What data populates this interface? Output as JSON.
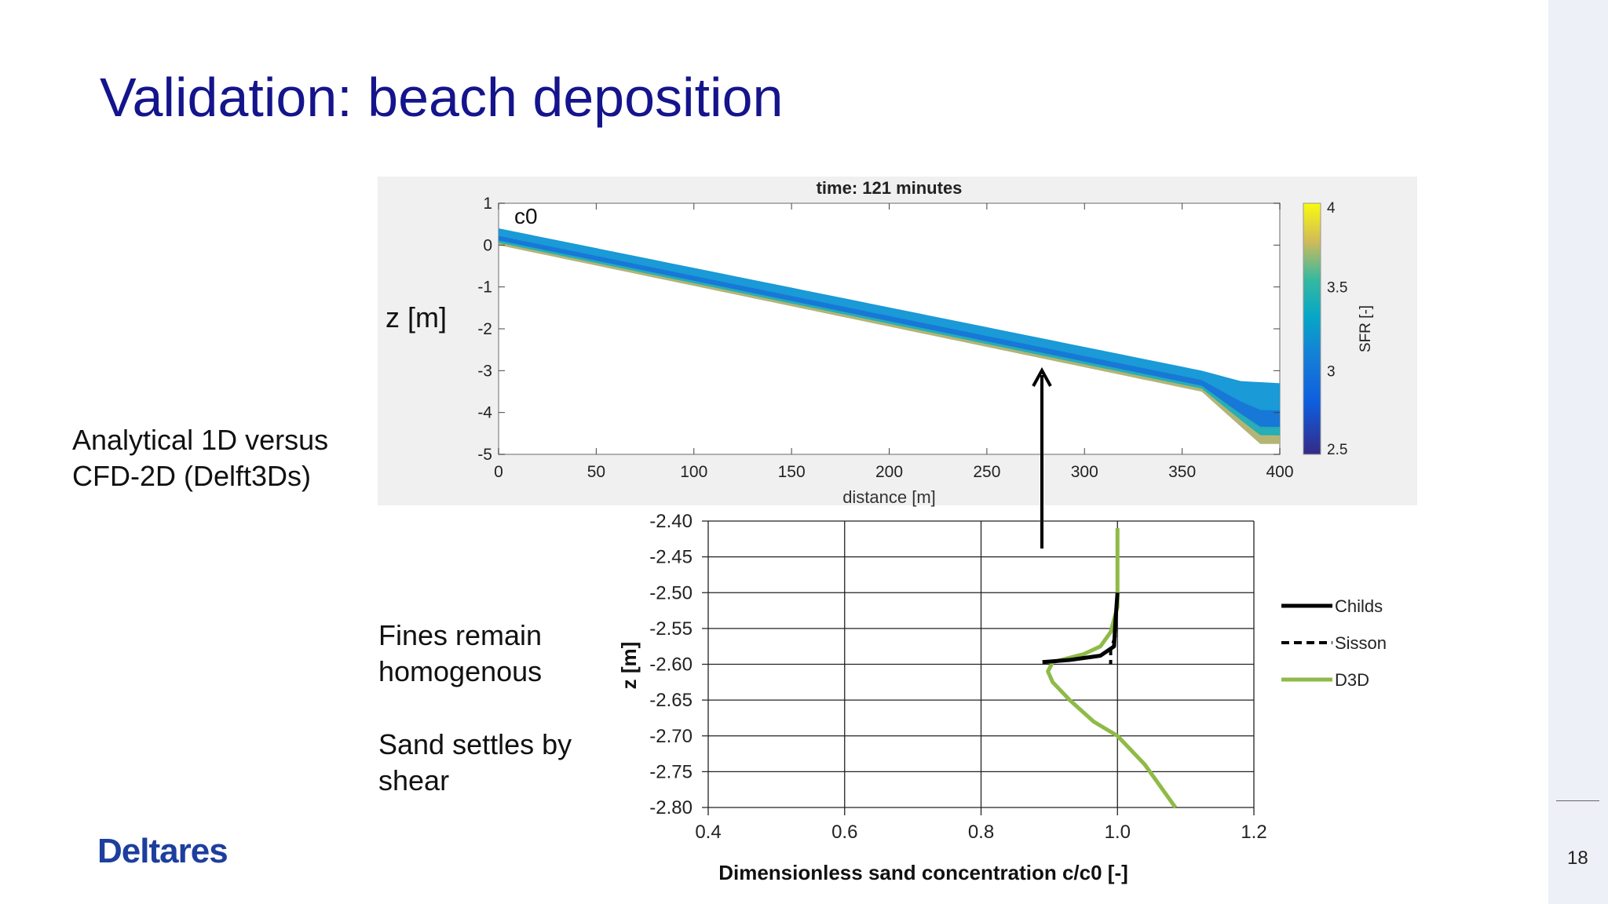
{
  "slide": {
    "title": "Validation: beach deposition",
    "page_number": "18",
    "logo": "Deltares",
    "text_left": [
      "Analytical 1D versus",
      "CFD-2D (Delft3Ds)"
    ],
    "text_fines": [
      "Fines remain",
      "homogenous"
    ],
    "text_sand": [
      "Sand settles by",
      "shear"
    ]
  },
  "colors": {
    "title": "#14148c",
    "logo": "#1d3e9e",
    "childs": "#000000",
    "sisson": "#000000",
    "d3d": "#8fba48"
  },
  "chart_data": [
    {
      "type": "heatmap",
      "title": "time: 121 minutes",
      "xlabel": "distance [m]",
      "ylabel": "z [m]",
      "annotation": "c0",
      "xlim": [
        0,
        400
      ],
      "ylim": [
        -5,
        1
      ],
      "xticks": [
        0,
        50,
        100,
        150,
        200,
        250,
        300,
        350,
        400
      ],
      "yticks": [
        1,
        0,
        -1,
        -2,
        -3,
        -4,
        -5
      ],
      "colorbar": {
        "label": "SFR [-]",
        "range": [
          2.5,
          4
        ],
        "ticks": [
          4,
          3.5,
          3,
          2.5
        ],
        "colormap": "parula"
      },
      "domain_top": [
        [
          0,
          0.4
        ],
        [
          360,
          -3.0
        ],
        [
          380,
          -3.25
        ],
        [
          400,
          -3.3
        ]
      ],
      "domain_bottom": [
        [
          0,
          0
        ],
        [
          360,
          -3.5
        ],
        [
          390,
          -4.75
        ],
        [
          400,
          -4.75
        ]
      ]
    },
    {
      "type": "line",
      "xlabel": "Dimensionless sand concentration  c/c0 [-]",
      "ylabel": "z [m]",
      "xlim": [
        0.4,
        1.2
      ],
      "ylim": [
        -2.8,
        -2.4
      ],
      "xticks": [
        "0.4",
        "0.6",
        "0.8",
        "1.0",
        "1.2"
      ],
      "yticks": [
        "-2.40",
        "-2.45",
        "-2.50",
        "-2.55",
        "-2.60",
        "-2.65",
        "-2.70",
        "-2.75",
        "-2.80"
      ],
      "grid": true,
      "legend": "right",
      "series": [
        {
          "name": "Childs",
          "style": "solid",
          "points": [
            [
              1.0,
              -2.5
            ],
            [
              0.997,
              -2.54
            ],
            [
              0.995,
              -2.575
            ],
            [
              0.975,
              -2.588
            ],
            [
              0.93,
              -2.594
            ],
            [
              0.89,
              -2.597
            ]
          ]
        },
        {
          "name": "Sisson",
          "style": "dashed",
          "points": [
            [
              0.997,
              -2.56
            ],
            [
              0.99,
              -2.58
            ],
            [
              0.99,
              -2.6
            ]
          ]
        },
        {
          "name": "D3D",
          "style": "solid",
          "points": [
            [
              1.0,
              -2.41
            ],
            [
              1.0,
              -2.52
            ],
            [
              0.99,
              -2.555
            ],
            [
              0.975,
              -2.575
            ],
            [
              0.95,
              -2.586
            ],
            [
              0.905,
              -2.597
            ],
            [
              0.898,
              -2.61
            ],
            [
              0.905,
              -2.625
            ],
            [
              0.93,
              -2.65
            ],
            [
              0.965,
              -2.68
            ],
            [
              1.0,
              -2.7
            ],
            [
              1.04,
              -2.74
            ],
            [
              1.085,
              -2.8
            ]
          ]
        }
      ]
    }
  ]
}
